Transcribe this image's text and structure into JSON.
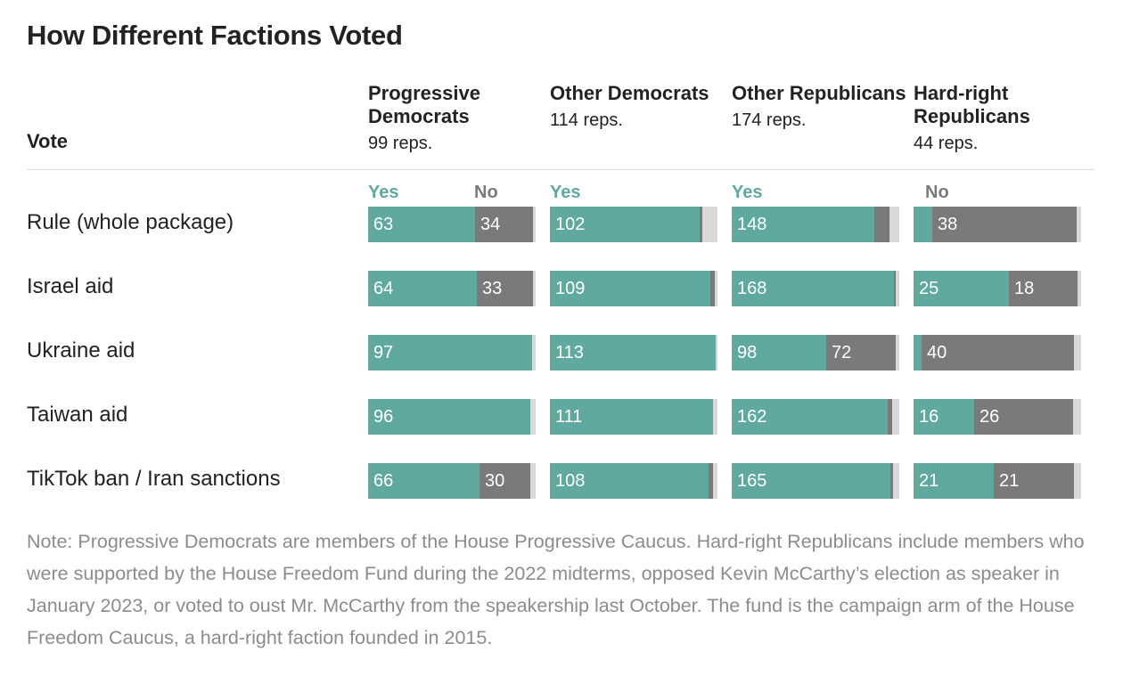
{
  "title": "How Different Factions Voted",
  "header": {
    "vote_label": "Vote"
  },
  "colors": {
    "yes": "#5fa99f",
    "no": "#7a7a7a",
    "other": "#d9d9d9",
    "yes_text": "#5fa99f",
    "no_text": "#7a7a7a"
  },
  "chart_data": {
    "type": "bar",
    "orientation": "horizontal",
    "stacked": true,
    "groups": [
      {
        "name": "Progressive Democrats",
        "count_label": "99 reps.",
        "total": 99,
        "legend": [
          "Yes",
          "No"
        ]
      },
      {
        "name": "Other Democrats",
        "count_label": "114 reps.",
        "total": 114,
        "legend": [
          "Yes"
        ]
      },
      {
        "name": "Other Republicans",
        "count_label": "174 reps.",
        "total": 174,
        "legend": [
          "Yes"
        ]
      },
      {
        "name": "Hard-right Republicans",
        "count_label": "44 reps.",
        "total": 44,
        "legend": [
          "No"
        ]
      }
    ],
    "rows": [
      {
        "label": "Rule (whole package)",
        "cells": [
          {
            "yes": 63,
            "no": 34,
            "yes_label": "63",
            "no_label": "34"
          },
          {
            "yes": 102,
            "no": 2,
            "yes_label": "102",
            "no_label": ""
          },
          {
            "yes": 148,
            "no": 16,
            "yes_label": "148",
            "no_label": ""
          },
          {
            "yes": 5,
            "no": 38,
            "yes_label": "",
            "no_label": "38"
          }
        ]
      },
      {
        "label": "Israel aid",
        "cells": [
          {
            "yes": 64,
            "no": 33,
            "yes_label": "64",
            "no_label": "33"
          },
          {
            "yes": 109,
            "no": 3,
            "yes_label": "109",
            "no_label": ""
          },
          {
            "yes": 168,
            "no": 2,
            "yes_label": "168",
            "no_label": ""
          },
          {
            "yes": 25,
            "no": 18,
            "yes_label": "25",
            "no_label": "18"
          }
        ]
      },
      {
        "label": "Ukraine aid",
        "cells": [
          {
            "yes": 97,
            "no": 0,
            "yes_label": "97",
            "no_label": ""
          },
          {
            "yes": 113,
            "no": 0,
            "yes_label": "113",
            "no_label": ""
          },
          {
            "yes": 98,
            "no": 72,
            "yes_label": "98",
            "no_label": "72"
          },
          {
            "yes": 2,
            "no": 40,
            "yes_label": "",
            "no_label": "40"
          }
        ]
      },
      {
        "label": "Taiwan aid",
        "cells": [
          {
            "yes": 96,
            "no": 0,
            "yes_label": "96",
            "no_label": ""
          },
          {
            "yes": 111,
            "no": 0,
            "yes_label": "111",
            "no_label": ""
          },
          {
            "yes": 162,
            "no": 5,
            "yes_label": "162",
            "no_label": ""
          },
          {
            "yes": 16,
            "no": 26,
            "yes_label": "16",
            "no_label": "26"
          }
        ]
      },
      {
        "label": "TikTok ban / Iran sanctions",
        "cells": [
          {
            "yes": 66,
            "no": 30,
            "yes_label": "66",
            "no_label": "30"
          },
          {
            "yes": 108,
            "no": 3,
            "yes_label": "108",
            "no_label": ""
          },
          {
            "yes": 165,
            "no": 3,
            "yes_label": "165",
            "no_label": ""
          },
          {
            "yes": 21,
            "no": 21,
            "yes_label": "21",
            "no_label": "21"
          }
        ]
      }
    ]
  },
  "note": "Note: Progressive Democrats are members of the House Progressive Caucus. Hard-right Republicans include members who were supported by the House Freedom Fund during the 2022 midterms, opposed Kevin McCarthy’s election as speaker in January 2023, or voted to oust Mr. McCarthy from the speakership last October. The fund is the campaign arm of the House Freedom Caucus, a hard-right faction founded in 2015."
}
